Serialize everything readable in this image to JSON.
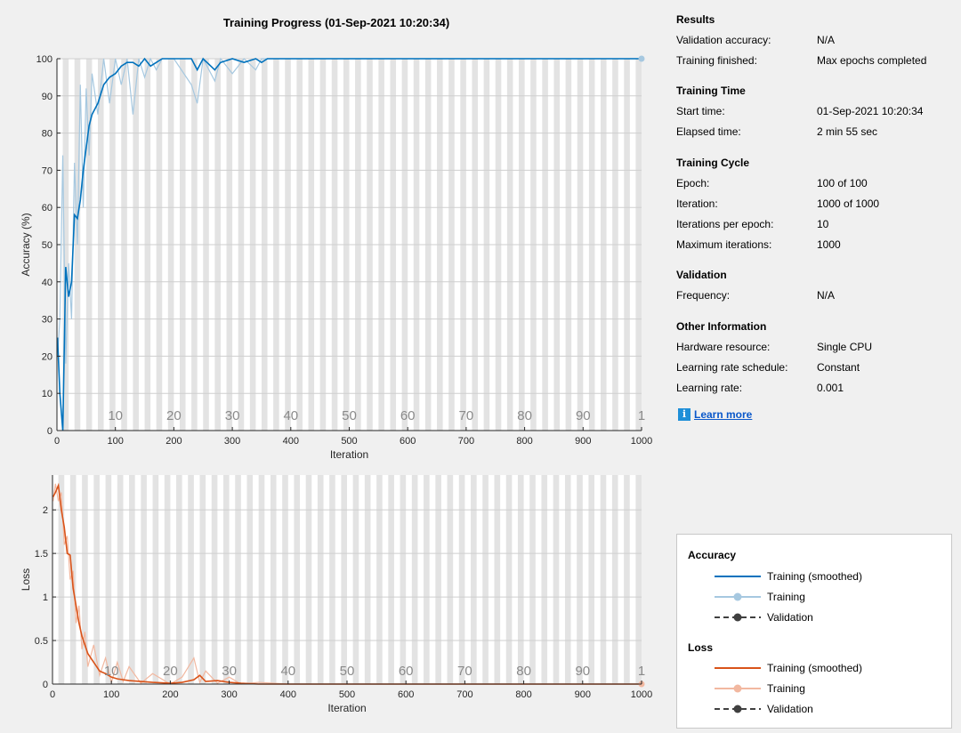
{
  "title": "Training Progress (01-Sep-2021 10:20:34)",
  "results": {
    "heading": "Results",
    "rows": [
      {
        "label": "Validation accuracy:",
        "value": "N/A"
      },
      {
        "label": "Training finished:",
        "value": "Max epochs completed"
      }
    ]
  },
  "training_time": {
    "heading": "Training Time",
    "rows": [
      {
        "label": "Start time:",
        "value": "01-Sep-2021 10:20:34"
      },
      {
        "label": "Elapsed time:",
        "value": "2 min 55 sec"
      }
    ]
  },
  "training_cycle": {
    "heading": "Training Cycle",
    "rows": [
      {
        "label": "Epoch:",
        "value": "100 of 100"
      },
      {
        "label": "Iteration:",
        "value": "1000 of 1000"
      },
      {
        "label": "Iterations per epoch:",
        "value": "10"
      },
      {
        "label": "Maximum iterations:",
        "value": "1000"
      }
    ]
  },
  "validation": {
    "heading": "Validation",
    "rows": [
      {
        "label": "Frequency:",
        "value": "N/A"
      }
    ]
  },
  "other_info": {
    "heading": "Other Information",
    "rows": [
      {
        "label": "Hardware resource:",
        "value": "Single CPU"
      },
      {
        "label": "Learning rate schedule:",
        "value": "Constant"
      },
      {
        "label": "Learning rate:",
        "value": "0.001"
      }
    ]
  },
  "learn_more": {
    "label": "Learn more",
    "icon": "info-icon"
  },
  "legend": {
    "accuracy_heading": "Accuracy",
    "loss_heading": "Loss",
    "accuracy_entries": [
      "Training (smoothed)",
      "Training",
      "Validation"
    ],
    "loss_entries": [
      "Training (smoothed)",
      "Training",
      "Validation"
    ]
  },
  "colors": {
    "accuracy_smoothed": "#0072bd",
    "accuracy_raw": "#a6c8e0",
    "loss_smoothed": "#d95319",
    "loss_raw": "#f2b8a0",
    "validation": "#404040",
    "epoch_shade": "#e3e3e3"
  },
  "chart_data": [
    {
      "type": "line",
      "ylabel": "Accuracy (%)",
      "xlabel": "Iteration",
      "xlim": [
        0,
        1000
      ],
      "ylim": [
        0,
        100
      ],
      "xticks": [
        0,
        100,
        200,
        300,
        400,
        500,
        600,
        700,
        800,
        900,
        1000
      ],
      "yticks": [
        0,
        10,
        20,
        30,
        40,
        50,
        60,
        70,
        80,
        90,
        100
      ],
      "epoch_labels": [
        "10",
        "20",
        "30",
        "40",
        "50",
        "60",
        "70",
        "80",
        "90",
        "1"
      ],
      "series": [
        {
          "name": "Training (smoothed)",
          "x": [
            1,
            5,
            10,
            15,
            20,
            25,
            30,
            35,
            40,
            45,
            50,
            55,
            60,
            70,
            80,
            90,
            100,
            110,
            120,
            130,
            140,
            150,
            160,
            170,
            180,
            200,
            230,
            240,
            250,
            270,
            280,
            300,
            320,
            340,
            350,
            360,
            400,
            500,
            600,
            700,
            800,
            900,
            1000
          ],
          "y": [
            25,
            10,
            0,
            44,
            36,
            40,
            58,
            57,
            62,
            70,
            76,
            82,
            85,
            88,
            93,
            95,
            96,
            98,
            99,
            99,
            98,
            100,
            98,
            99,
            100,
            100,
            100,
            97,
            100,
            97,
            99,
            100,
            99,
            100,
            99,
            100,
            100,
            100,
            100,
            100,
            100,
            100,
            100
          ]
        },
        {
          "name": "Training",
          "x": [
            1,
            5,
            10,
            15,
            20,
            25,
            30,
            35,
            40,
            45,
            50,
            55,
            60,
            70,
            80,
            90,
            100,
            110,
            120,
            130,
            140,
            150,
            160,
            170,
            180,
            200,
            230,
            240,
            250,
            270,
            280,
            300,
            320,
            340,
            350,
            360,
            400,
            500,
            600,
            700,
            800,
            900,
            1000
          ],
          "y": [
            20,
            30,
            74,
            18,
            45,
            30,
            72,
            50,
            93,
            60,
            92,
            74,
            96,
            85,
            100,
            88,
            100,
            93,
            100,
            85,
            100,
            95,
            100,
            97,
            100,
            100,
            93,
            88,
            100,
            94,
            100,
            96,
            100,
            97,
            100,
            100,
            100,
            100,
            100,
            100,
            100,
            100,
            100
          ]
        }
      ]
    },
    {
      "type": "line",
      "ylabel": "Loss",
      "xlabel": "Iteration",
      "xlim": [
        0,
        1000
      ],
      "ylim": [
        0,
        2.4
      ],
      "xticks": [
        0,
        100,
        200,
        300,
        400,
        500,
        600,
        700,
        800,
        900,
        1000
      ],
      "yticks": [
        0,
        0.5,
        1,
        1.5,
        2
      ],
      "epoch_labels": [
        "10",
        "20",
        "30",
        "40",
        "50",
        "60",
        "70",
        "80",
        "90",
        "1"
      ],
      "series": [
        {
          "name": "Training (smoothed)",
          "x": [
            1,
            5,
            10,
            15,
            20,
            25,
            30,
            35,
            40,
            45,
            50,
            55,
            60,
            70,
            80,
            90,
            100,
            110,
            120,
            130,
            150,
            170,
            200,
            220,
            240,
            250,
            260,
            280,
            300,
            320,
            350,
            400,
            500,
            600,
            700,
            800,
            900,
            1000
          ],
          "y": [
            2.15,
            2.2,
            2.28,
            2.0,
            1.8,
            1.5,
            1.48,
            1.1,
            0.9,
            0.7,
            0.55,
            0.45,
            0.35,
            0.25,
            0.15,
            0.12,
            0.08,
            0.06,
            0.05,
            0.04,
            0.03,
            0.02,
            0.01,
            0.02,
            0.05,
            0.1,
            0.03,
            0.04,
            0.02,
            0.01,
            0.0,
            0.0,
            0.0,
            0.0,
            0.0,
            0.0,
            0.0,
            0.0
          ]
        },
        {
          "name": "Training",
          "x": [
            1,
            5,
            10,
            15,
            20,
            25,
            30,
            35,
            40,
            45,
            50,
            55,
            60,
            70,
            80,
            90,
            100,
            110,
            120,
            130,
            150,
            170,
            200,
            220,
            240,
            250,
            260,
            280,
            300,
            320,
            350,
            400,
            500,
            600,
            700,
            800,
            900,
            1000
          ],
          "y": [
            2.1,
            2.3,
            2.1,
            2.2,
            1.6,
            1.7,
            1.2,
            1.3,
            0.7,
            0.9,
            0.4,
            0.6,
            0.2,
            0.45,
            0.1,
            0.3,
            0.02,
            0.25,
            0.03,
            0.2,
            0.01,
            0.12,
            0.0,
            0.08,
            0.3,
            0.02,
            0.15,
            0.01,
            0.08,
            0.0,
            0.02,
            0.0,
            0.0,
            0.0,
            0.0,
            0.0,
            0.0,
            0.0
          ]
        }
      ]
    }
  ]
}
